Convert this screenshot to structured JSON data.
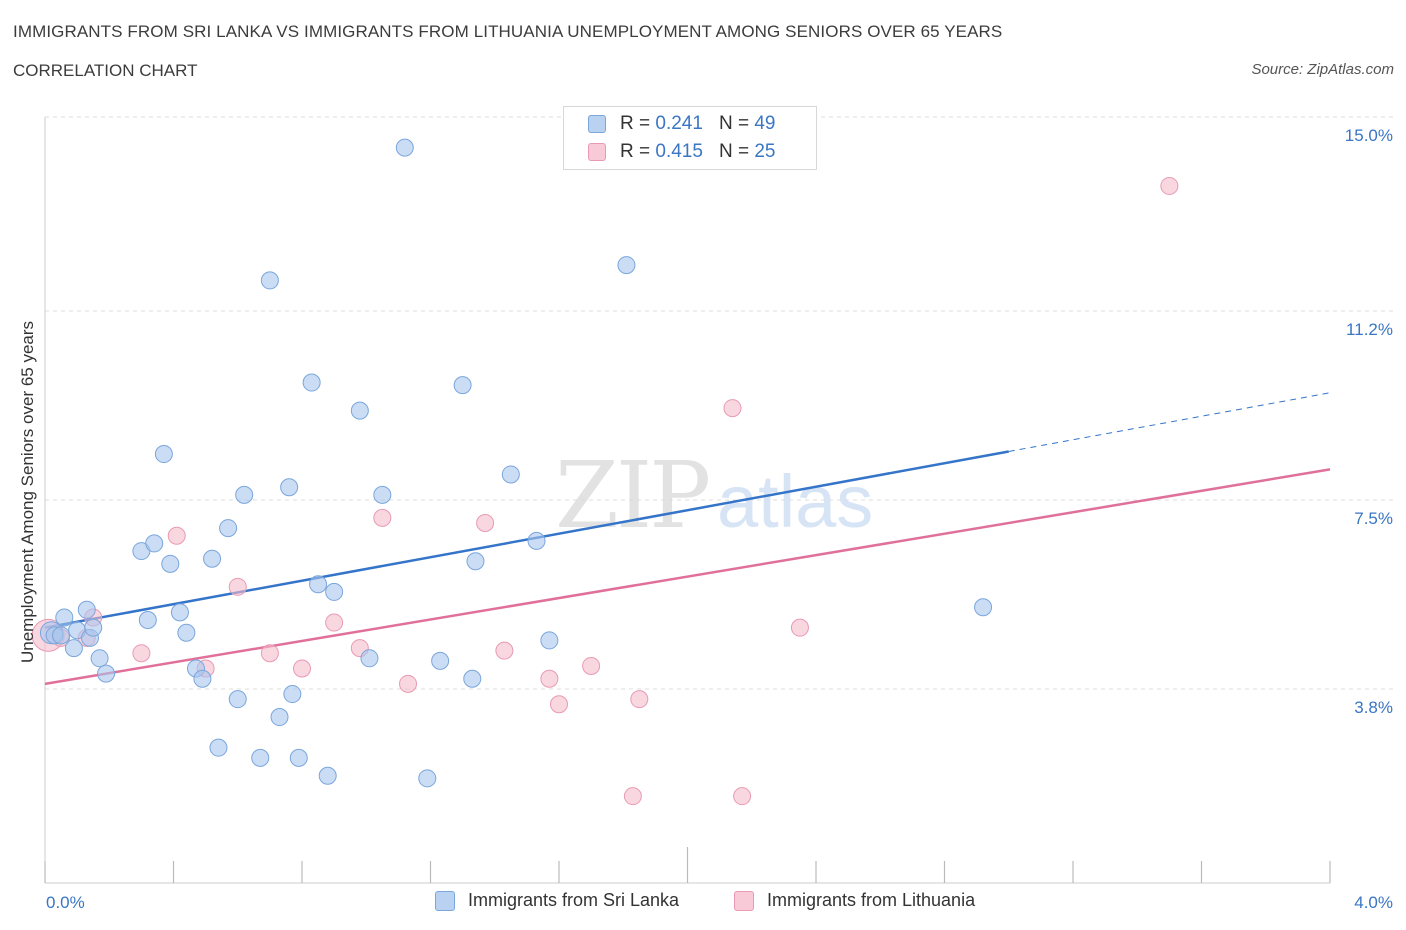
{
  "title": "IMMIGRANTS FROM SRI LANKA VS IMMIGRANTS FROM LITHUANIA UNEMPLOYMENT AMONG SENIORS OVER 65 YEARS",
  "subtitle": "CORRELATION CHART",
  "source": "Source: ZipAtlas.com",
  "watermark": {
    "zip": "ZIP",
    "atlas": "atlas"
  },
  "legend": {
    "r_label": "R =",
    "n_label": "N =",
    "rows": [
      {
        "r": "0.241",
        "n": "49"
      },
      {
        "r": "0.415",
        "n": "25"
      }
    ]
  },
  "bottom_legend": [
    "Immigrants from Sri Lanka",
    "Immigrants from Lithuania"
  ],
  "colors": {
    "blue_fill": "#a9c7ee",
    "blue_stroke": "#7aa6dc",
    "blue_line": "#3474c9",
    "pink_fill": "#f5bccd",
    "pink_stroke": "#e99ab3",
    "pink_line": "#e0709a",
    "tick_text": "#3a76c4",
    "grid": "#dddddd"
  },
  "chart_data": {
    "type": "scatter",
    "title": "IMMIGRANTS FROM SRI LANKA VS IMMIGRANTS FROM LITHUANIA UNEMPLOYMENT AMONG SENIORS OVER 65 YEARS",
    "xlabel": "",
    "ylabel": "Unemployment Among Seniors over 65 years",
    "xlim": [
      0,
      4.0
    ],
    "ylim": [
      0,
      15.0
    ],
    "x_tick_labels": [
      "0.0%",
      "4.0%"
    ],
    "y_ticks": [
      3.8,
      7.5,
      11.2,
      15.0
    ],
    "y_tick_labels": [
      "3.8%",
      "7.5%",
      "11.2%",
      "15.0%"
    ],
    "grid": true,
    "legend_position": "top-center",
    "series": [
      {
        "name": "Immigrants from Sri Lanka",
        "r": 0.241,
        "n": 49,
        "trend": {
          "x": [
            0.0,
            3.0
          ],
          "y": [
            5.0,
            8.45
          ],
          "dashed_to": [
            4.0,
            9.6
          ]
        },
        "points": [
          [
            0.02,
            4.9
          ],
          [
            0.03,
            4.85
          ],
          [
            0.06,
            5.2
          ],
          [
            0.09,
            4.6
          ],
          [
            0.1,
            4.95
          ],
          [
            0.13,
            5.35
          ],
          [
            0.14,
            4.8
          ],
          [
            0.15,
            5.0
          ],
          [
            0.17,
            4.4
          ],
          [
            0.19,
            4.1
          ],
          [
            0.3,
            6.5
          ],
          [
            0.32,
            5.15
          ],
          [
            0.34,
            6.65
          ],
          [
            0.37,
            8.4
          ],
          [
            0.39,
            6.25
          ],
          [
            0.42,
            5.3
          ],
          [
            0.44,
            4.9
          ],
          [
            0.47,
            4.2
          ],
          [
            0.49,
            4.0
          ],
          [
            0.52,
            6.35
          ],
          [
            0.54,
            2.65
          ],
          [
            0.57,
            6.95
          ],
          [
            0.6,
            3.6
          ],
          [
            0.62,
            7.6
          ],
          [
            0.67,
            2.45
          ],
          [
            0.7,
            11.8
          ],
          [
            0.73,
            3.25
          ],
          [
            0.76,
            7.75
          ],
          [
            0.77,
            3.7
          ],
          [
            0.79,
            2.45
          ],
          [
            0.83,
            9.8
          ],
          [
            0.85,
            5.85
          ],
          [
            0.88,
            2.1
          ],
          [
            0.9,
            5.7
          ],
          [
            0.98,
            9.25
          ],
          [
            1.01,
            4.4
          ],
          [
            1.05,
            7.6
          ],
          [
            1.12,
            14.4
          ],
          [
            1.19,
            2.05
          ],
          [
            1.23,
            4.35
          ],
          [
            1.3,
            9.75
          ],
          [
            1.33,
            4.0
          ],
          [
            1.34,
            6.3
          ],
          [
            1.45,
            8.0
          ],
          [
            1.53,
            6.7
          ],
          [
            1.57,
            4.75
          ],
          [
            1.81,
            12.1
          ],
          [
            2.92,
            5.4
          ],
          [
            0.05,
            4.85
          ]
        ]
      },
      {
        "name": "Immigrants from Lithuania",
        "r": 0.415,
        "n": 25,
        "trend": {
          "x": [
            0.0,
            4.0
          ],
          "y": [
            3.9,
            8.1
          ]
        },
        "points": [
          [
            0.01,
            4.85
          ],
          [
            0.05,
            4.8
          ],
          [
            0.13,
            4.8
          ],
          [
            0.15,
            5.2
          ],
          [
            0.3,
            4.5
          ],
          [
            0.41,
            6.8
          ],
          [
            0.5,
            4.2
          ],
          [
            0.6,
            5.8
          ],
          [
            0.7,
            4.5
          ],
          [
            0.8,
            4.2
          ],
          [
            0.9,
            5.1
          ],
          [
            0.98,
            4.6
          ],
          [
            1.05,
            7.15
          ],
          [
            1.13,
            3.9
          ],
          [
            1.37,
            7.05
          ],
          [
            1.43,
            4.55
          ],
          [
            1.57,
            4.0
          ],
          [
            1.6,
            3.5
          ],
          [
            1.7,
            4.25
          ],
          [
            1.83,
            1.7
          ],
          [
            1.85,
            3.6
          ],
          [
            2.14,
            9.3
          ],
          [
            2.17,
            1.7
          ],
          [
            2.35,
            5.0
          ],
          [
            3.5,
            13.65
          ]
        ]
      }
    ]
  }
}
